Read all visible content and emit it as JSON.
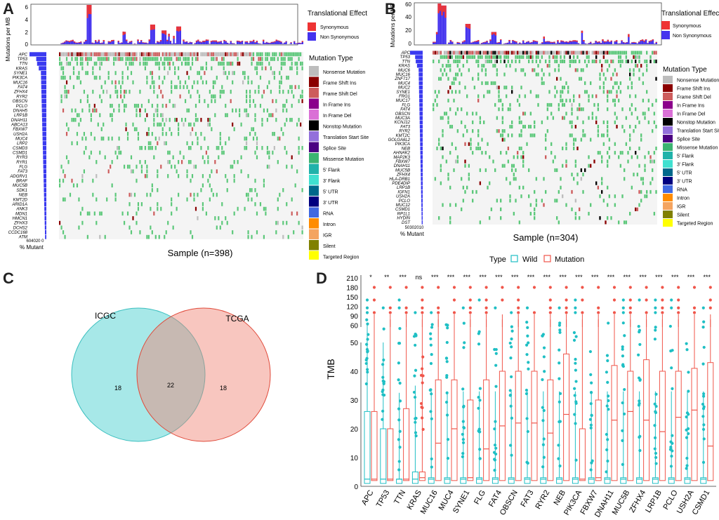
{
  "panels": {
    "A": {
      "letter": "A",
      "bar_ylabel": "Mutations per MB",
      "bar_ticks": [
        "6",
        "4",
        "2",
        "0"
      ],
      "legend_title": "Translational Effect",
      "legend_items": [
        "Synonymous",
        "Non Synonymous"
      ],
      "genes": [
        "APC",
        "TP53",
        "TTN",
        "KRAS",
        "SYNE1",
        "PIK3CA",
        "MUC16",
        "FAT4",
        "ZFHX4",
        "RYR2",
        "OBSCN",
        "PCLO",
        "DNAH5",
        "LRP1B",
        "DNAH11",
        "ABCA13",
        "FBXW7",
        "USH2A",
        "MUC4",
        "LRP2",
        "CSMD3",
        "CSMD1",
        "RYR3",
        "RYR1",
        "FLG",
        "FAT3",
        "ADGRV1",
        "BRAF",
        "MUC5B",
        "SDK1",
        "NEB",
        "KMT2D",
        "ARID1A",
        "ANK3",
        "MDN1",
        "HMCN1",
        "ZFHX3",
        "DCHS2",
        "CCDC168",
        "ATM"
      ],
      "mutant_axis": "604020 0",
      "mutant_label": "% Mutant",
      "sample_label": "Sample (n=398)"
    },
    "B": {
      "letter": "B",
      "bar_ylabel": "Mutations per MB",
      "bar_ticks": [
        "60",
        "40",
        "20",
        "0"
      ],
      "legend_title": "Translational Effect",
      "legend_items": [
        "Synonymous",
        "Non Synonymous"
      ],
      "genes": [
        "APC",
        "TP53",
        "TTN",
        "KRAS",
        "MUC6",
        "MUC16",
        "ZNF717",
        "MUC4",
        "MUC2",
        "SYNE1",
        "FRG1",
        "MUC17",
        "FLG",
        "FAT4",
        "OBSCN",
        "MUC3A",
        "KCNJ12",
        "FAT3",
        "RYR2",
        "KMT2C",
        "GOLGA6L2",
        "PIK3CA",
        "NEB",
        "AHNAK2",
        "MAP2K3",
        "FBXW7",
        "DNAH11",
        "MUC5B",
        "ZFHX4",
        "HLA-DRB1",
        "PDE4DIP",
        "LRP1B",
        "IGFN1",
        "USH2A",
        "PCLO",
        "MUC12",
        "CSMD1",
        "RP1L1",
        "HYDIN",
        "DST"
      ],
      "mutant_axis": "50302010",
      "mutant_label": "% Mutant",
      "sample_label": "Sample (n=304)"
    },
    "mutation_type_title": "Mutation Type",
    "mutation_types": [
      {
        "label": "Nonsense Mutation",
        "color": "#bdbdbd"
      },
      {
        "label": "Frame Shift Ins",
        "color": "#8b0000"
      },
      {
        "label": "Frame Shift Del",
        "color": "#cd5c5c"
      },
      {
        "label": "In Frame Ins",
        "color": "#8b008b"
      },
      {
        "label": "In Frame Del",
        "color": "#da70d6"
      },
      {
        "label": "Nonstop Mutation",
        "color": "#000000"
      },
      {
        "label": "Translation Start Site",
        "color": "#9370db"
      },
      {
        "label": "Splice Site",
        "color": "#4b0082"
      },
      {
        "label": "Missense Mutation",
        "color": "#3cb371"
      },
      {
        "label": "5' Flank",
        "color": "#20b2aa"
      },
      {
        "label": "3' Flank",
        "color": "#40e0d0"
      },
      {
        "label": "5' UTR",
        "color": "#00688b"
      },
      {
        "label": "3' UTR",
        "color": "#000080"
      },
      {
        "label": "RNA",
        "color": "#4169e1"
      },
      {
        "label": "Intron",
        "color": "#ff8c00"
      },
      {
        "label": "IGR",
        "color": "#f4a460"
      },
      {
        "label": "Silent",
        "color": "#808000"
      },
      {
        "label": "Targeted Region",
        "color": "#ffff00"
      }
    ],
    "C": {
      "letter": "C",
      "label_left": "ICGC",
      "label_right": "TCGA",
      "left_only": "18",
      "both": "22",
      "right_only": "18",
      "color_left": "#5fd6d6",
      "color_right": "#f08070"
    },
    "D": {
      "letter": "D",
      "legend_title": "Type",
      "legend_wild": "Wild",
      "legend_mut": "Mutation",
      "ylabel": "TMB",
      "genes": [
        "APC",
        "TP53",
        "TTN",
        "KRAS",
        "MUC16",
        "MUC4",
        "SYNE1",
        "FLG",
        "FAT4",
        "OBSCN",
        "FAT3",
        "RYR2",
        "NEB",
        "PIK3CA",
        "FBXW7",
        "DNAH11",
        "MUC5B",
        "ZFHX4",
        "LRP1B",
        "PCLO",
        "USH2A",
        "CSMD1"
      ],
      "sig": [
        "*",
        "**",
        "***",
        "ns",
        "***",
        "***",
        "***",
        "***",
        "***",
        "***",
        "***",
        "***",
        "***",
        "***",
        "***",
        "***",
        "***",
        "***",
        "***",
        "***",
        "***",
        "***"
      ],
      "upper_ticks": [
        "210",
        "180",
        "150",
        "120",
        "90",
        "60"
      ],
      "lower_ticks": [
        "50",
        "40",
        "30",
        "20",
        "10",
        "0"
      ],
      "mut_medians": [
        2.5,
        2.5,
        2.5,
        3,
        15,
        20,
        3,
        13,
        21,
        22,
        22,
        18.5,
        25,
        2.5,
        3,
        23,
        26,
        23,
        19,
        24,
        26.5,
        14
      ],
      "mut_q3": [
        26,
        20,
        27,
        5,
        37,
        37,
        30,
        37,
        40,
        40,
        40,
        37,
        46,
        20,
        30,
        42,
        40,
        44,
        40,
        40,
        41,
        43
      ],
      "wild_q3": [
        26,
        20,
        2.5,
        5,
        3,
        3,
        3,
        3,
        3,
        3,
        3,
        3,
        3,
        3,
        3,
        3,
        3,
        3,
        3,
        3,
        3,
        3
      ],
      "color_wild": "#1fbfc4",
      "color_mut": "#f0554a"
    }
  }
}
